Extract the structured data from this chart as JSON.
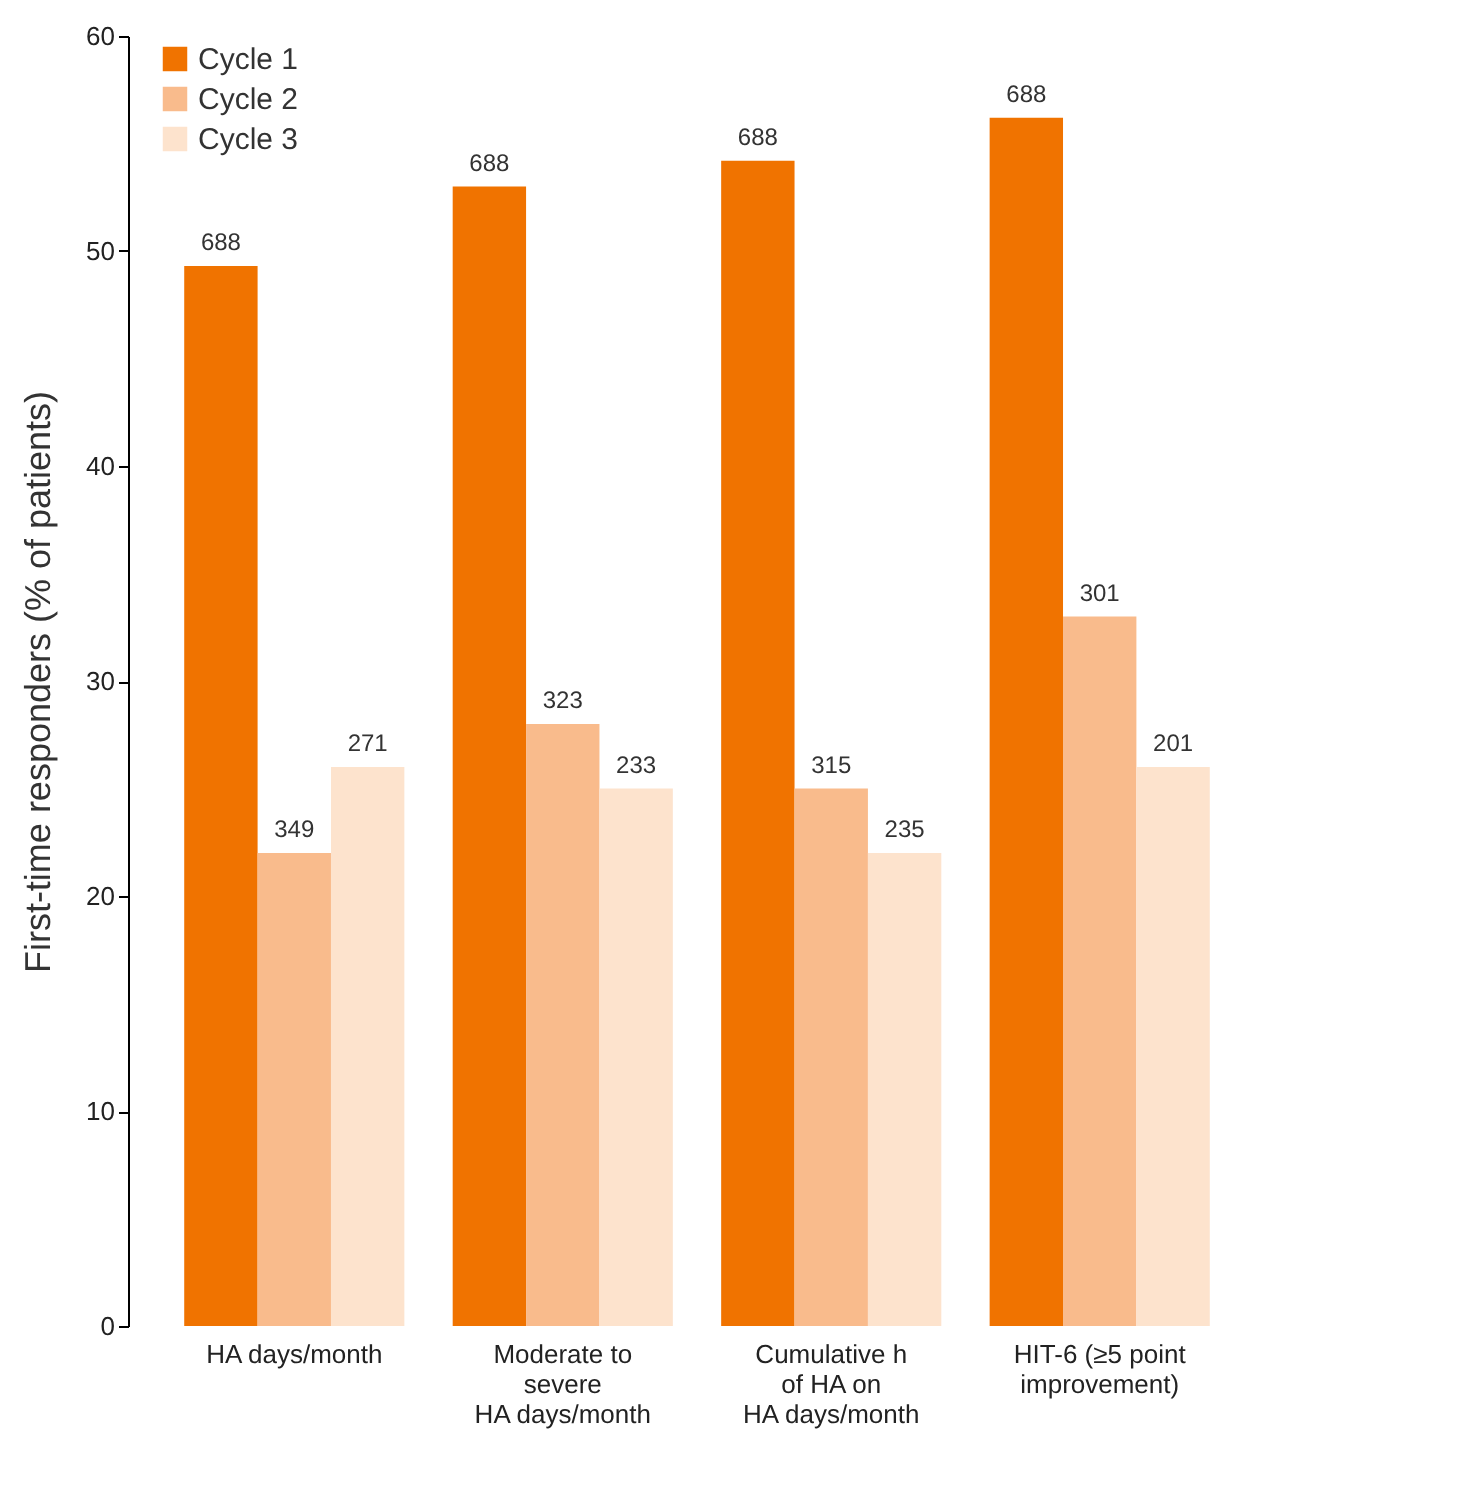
{
  "chart_data": {
    "type": "bar",
    "ylabel": "First-time responders (% of patients)",
    "categories": [
      "HA days/month",
      "Moderate to\nsevere\nHA days/month",
      "Cumulative h\nof HA on\nHA days/month",
      "HIT-6 (≥5 point\nimprovement)"
    ],
    "series": [
      {
        "name": "Cycle 1",
        "color": "#f07300",
        "values": [
          49.3,
          53,
          54.2,
          56.2
        ]
      },
      {
        "name": "Cycle 2",
        "color": "#f9bb8c",
        "values": [
          22,
          28,
          25,
          33
        ]
      },
      {
        "name": "Cycle 3",
        "color": "#fde3cd",
        "values": [
          26,
          25,
          22,
          26
        ]
      }
    ],
    "annotations": [
      "688",
      "349",
      "271",
      "688",
      "323",
      "233",
      "688",
      "315",
      "235",
      "688",
      "301",
      "201"
    ],
    "ylim": [
      0,
      60
    ],
    "yticks": [
      0,
      10,
      20,
      30,
      40,
      50,
      60
    ],
    "legend": "top left",
    "grid": false
  }
}
